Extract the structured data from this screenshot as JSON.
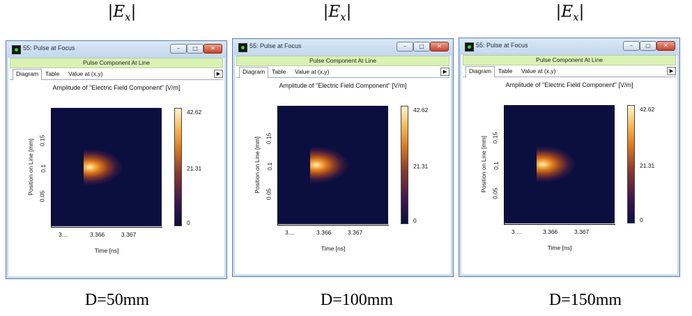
{
  "equation": {
    "bar_open": "|",
    "var": "E",
    "sub": "x",
    "bar_close": "|"
  },
  "windows": [
    {
      "title": "55: Pulse at Focus",
      "subheader": "Pulse Component At Line",
      "tabs": [
        "Diagram",
        "Table",
        "Value at (x,y)"
      ],
      "plot_title": "Amplitude of \"Electric Field Component\"  [V/m]",
      "y_label": "Position on Line [mm]",
      "y_ticks": [
        "0.15",
        "0.1",
        "0.05"
      ],
      "x_label": "Time [ns]",
      "x_ticks": [
        "3....",
        "3.366",
        "3.367"
      ],
      "colorbar": {
        "max": "42.62",
        "mid": "21.31",
        "min": "0"
      },
      "caption": "D=50mm"
    },
    {
      "title": "55: Pulse at Focus",
      "subheader": "Pulse Component At Line",
      "tabs": [
        "Diagram",
        "Table",
        "Value at (x,y)"
      ],
      "plot_title": "Amplitude of \"Electric Field Component\"  [V/m]",
      "y_label": "Position on Line [mm]",
      "y_ticks": [
        "0.15",
        "0.1",
        "0.05"
      ],
      "x_label": "Time [ns]",
      "x_ticks": [
        "3....",
        "3.366",
        "3.367"
      ],
      "colorbar": {
        "max": "42.62",
        "mid": "21.31",
        "min": "0"
      },
      "caption": "D=100mm"
    },
    {
      "title": "55: Pulse at Focus",
      "subheader": "Pulse Component At Line",
      "tabs": [
        "Diagram",
        "Table",
        "Value at (x,y)"
      ],
      "plot_title": "Amplitude of \"Electric Field Component\"  [V/m]",
      "y_label": "Position on Line [mm]",
      "y_ticks": [
        "0.15",
        "0.1",
        "0.05"
      ],
      "x_label": "Time [ns]",
      "x_ticks": [
        "3....",
        "3.366",
        "3.367"
      ],
      "colorbar": {
        "max": "42.62",
        "mid": "21.31",
        "min": "0"
      },
      "caption": "D=150mm"
    }
  ],
  "icons": {
    "app": "app-icon",
    "minimize": "minimize-icon",
    "maximize": "maximize-icon",
    "close": "close-icon",
    "tab_scroll": "triangle-right-icon"
  },
  "colors": {
    "heat_low": "#0b0f3f",
    "heat_high": "#fff6cf",
    "subheader_bg": "#d9f2b4",
    "close_button": "#c7432a"
  }
}
